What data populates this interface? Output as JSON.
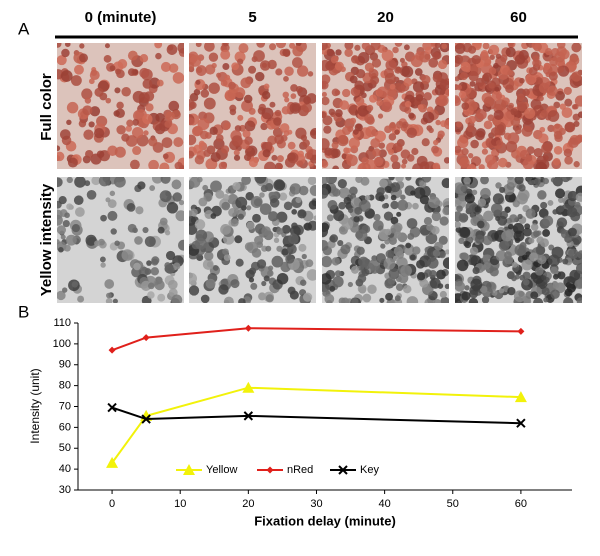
{
  "panel_a": {
    "label": "A",
    "columns": [
      "0 (minute)",
      "5",
      "20",
      "60"
    ],
    "rows": [
      "Full color",
      "Yellow intensity"
    ]
  },
  "chart_data": {
    "type": "line",
    "panel_label": "B",
    "x": [
      0,
      5,
      20,
      60
    ],
    "series": [
      {
        "name": "Yellow",
        "color": "#f2f20a",
        "marker": "triangle",
        "values": [
          43,
          65.5,
          79,
          74.5
        ]
      },
      {
        "name": "nRed",
        "color": "#e0201b",
        "marker": "diamond",
        "values": [
          97,
          103,
          107.5,
          106
        ]
      },
      {
        "name": "Key",
        "color": "#000000",
        "marker": "x",
        "values": [
          69.5,
          64,
          65.5,
          62
        ]
      }
    ],
    "xlabel": "Fixation delay  (minute)",
    "ylabel": "Intensity (unit)",
    "xlim": [
      -5,
      67.5
    ],
    "xticks": [
      0,
      10,
      20,
      30,
      40,
      50,
      60
    ],
    "ylim": [
      30,
      110
    ],
    "yticks": [
      30,
      40,
      50,
      60,
      70,
      80,
      90,
      100,
      110
    ],
    "grid": false,
    "legend": "lower center"
  }
}
